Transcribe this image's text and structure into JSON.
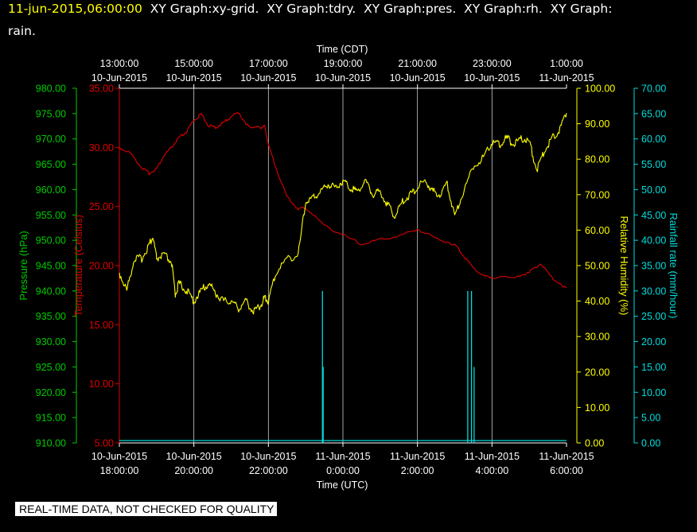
{
  "header": {
    "timestamp": "11-jun-2015,06:00:00",
    "titles_line1": "  XY Graph:xy-grid.  XY Graph:tdry.  XY Graph:pres.  XY Graph:rh.  XY Graph:",
    "titles_line2": "rain."
  },
  "disclaimer": "REAL-TIME DATA, NOT CHECKED FOR QUALITY",
  "colors": {
    "pressure": "#00cc00",
    "temperature": "#dd0000",
    "humidity": "#ffff00",
    "rain": "#00dddd",
    "grid": "#ffffff",
    "background": "#000000"
  },
  "chart_data": {
    "type": "line",
    "top_axis": {
      "title": "Time (CDT)",
      "ticks": [
        {
          "time": "13:00:00",
          "date": "10-Jun-2015"
        },
        {
          "time": "15:00:00",
          "date": "10-Jun-2015"
        },
        {
          "time": "17:00:00",
          "date": "10-Jun-2015"
        },
        {
          "time": "19:00:00",
          "date": "10-Jun-2015"
        },
        {
          "time": "21:00:00",
          "date": "10-Jun-2015"
        },
        {
          "time": "23:00:00",
          "date": "10-Jun-2015"
        },
        {
          "time": "1:00:00",
          "date": "11-Jun-2015"
        }
      ]
    },
    "bottom_axis": {
      "title": "Time (UTC)",
      "ticks": [
        {
          "date": "10-Jun-2015",
          "time": "18:00:00"
        },
        {
          "date": "10-Jun-2015",
          "time": "20:00:00"
        },
        {
          "date": "10-Jun-2015",
          "time": "22:00:00"
        },
        {
          "date": "11-Jun-2015",
          "time": "0:00:00"
        },
        {
          "date": "11-Jun-2015",
          "time": "2:00:00"
        },
        {
          "date": "11-Jun-2015",
          "time": "4:00:00"
        },
        {
          "date": "11-Jun-2015",
          "time": "6:00:00"
        }
      ]
    },
    "x_range_hours_utc": [
      0,
      12
    ],
    "grid": "vertical",
    "axes": {
      "pressure": {
        "label": "Pressure (hPa)",
        "range": [
          910,
          980
        ],
        "ticks": [
          "910.00",
          "915.00",
          "920.00",
          "925.00",
          "930.00",
          "935.00",
          "940.00",
          "945.00",
          "950.00",
          "955.00",
          "960.00",
          "965.00",
          "970.00",
          "975.00",
          "980.00"
        ]
      },
      "temperature": {
        "label": "Temperature (Celsius)",
        "range": [
          5,
          35
        ],
        "ticks": [
          "5.00",
          "10.00",
          "15.00",
          "20.00",
          "25.00",
          "30.00",
          "35.00"
        ]
      },
      "humidity": {
        "label": "Relative Humidity (%)",
        "range": [
          0,
          100
        ],
        "ticks": [
          "0.00",
          "10.00",
          "20.00",
          "30.00",
          "40.00",
          "50.00",
          "60.00",
          "70.00",
          "80.00",
          "90.00",
          "100.00"
        ]
      },
      "rain": {
        "label": "Rainfall rate (mm/hour)",
        "range": [
          0,
          70
        ],
        "ticks": [
          "0.00",
          "5.00",
          "10.00",
          "15.00",
          "20.00",
          "25.00",
          "30.00",
          "35.00",
          "40.00",
          "45.00",
          "50.00",
          "55.00",
          "60.00",
          "65.00",
          "70.00"
        ]
      }
    },
    "series": [
      {
        "name": "tdry",
        "axis": "temperature",
        "x_hours": [
          0,
          0.3,
          0.6,
          0.8,
          1.0,
          1.2,
          1.4,
          1.6,
          1.8,
          2.0,
          2.2,
          2.4,
          2.6,
          2.8,
          3.0,
          3.2,
          3.4,
          3.6,
          3.8,
          3.9,
          4.0,
          4.2,
          4.5,
          4.8,
          5.0,
          5.5,
          6.0,
          6.5,
          7.0,
          7.5,
          8.0,
          8.5,
          9.0,
          9.2,
          9.5,
          9.8,
          10.0,
          10.5,
          11.0,
          11.3,
          11.6,
          12.0
        ],
        "values": [
          30.0,
          29.5,
          28.3,
          27.8,
          28.2,
          29.3,
          30.0,
          30.8,
          31.3,
          32.3,
          32.8,
          31.8,
          31.7,
          32.1,
          32.6,
          33.0,
          31.9,
          31.7,
          31.7,
          31.8,
          30.2,
          28.3,
          25.8,
          24.8,
          24.9,
          23.4,
          22.6,
          21.8,
          22.2,
          22.5,
          23.1,
          22.3,
          21.8,
          21.0,
          19.8,
          19.1,
          19.0,
          19.0,
          19.4,
          20.2,
          19.0,
          18.1
        ]
      },
      {
        "name": "pres",
        "axis": "pressure",
        "x_hours": [],
        "values": []
      },
      {
        "name": "rh",
        "axis": "humidity",
        "x_hours": [
          0,
          0.2,
          0.4,
          0.6,
          0.8,
          0.9,
          1.0,
          1.2,
          1.4,
          1.5,
          1.6,
          1.8,
          2.0,
          2.2,
          2.4,
          2.6,
          2.8,
          3.0,
          3.2,
          3.4,
          3.6,
          3.8,
          3.9,
          4.0,
          4.2,
          4.5,
          4.8,
          5.0,
          5.2,
          5.4,
          5.6,
          5.8,
          6.0,
          6.2,
          6.4,
          6.6,
          6.8,
          7.0,
          7.2,
          7.4,
          7.6,
          7.8,
          8.0,
          8.2,
          8.4,
          8.6,
          8.8,
          9.0,
          9.2,
          9.5,
          9.8,
          10.0,
          10.2,
          10.4,
          10.6,
          10.8,
          11.0,
          11.2,
          11.4,
          11.6,
          11.8,
          12.0
        ],
        "values": [
          48,
          43,
          52,
          52,
          56,
          58,
          52,
          53,
          51,
          42,
          45,
          43,
          40,
          43,
          45,
          42,
          40,
          40,
          38,
          40,
          37,
          39,
          41,
          40,
          48,
          52,
          53,
          68,
          69,
          71,
          73,
          72,
          74,
          72,
          71,
          74,
          70,
          71,
          67,
          64,
          68,
          70,
          72,
          74,
          71,
          70,
          73,
          64,
          70,
          78,
          81,
          85,
          84,
          86,
          84,
          86,
          85,
          77,
          82,
          86,
          88,
          93
        ]
      },
      {
        "name": "rain",
        "axis": "rain",
        "type": "bar",
        "x_hours": [
          5.45,
          5.47,
          9.35,
          9.45,
          9.52
        ],
        "values": [
          30,
          15,
          30,
          30,
          15
        ]
      }
    ]
  }
}
